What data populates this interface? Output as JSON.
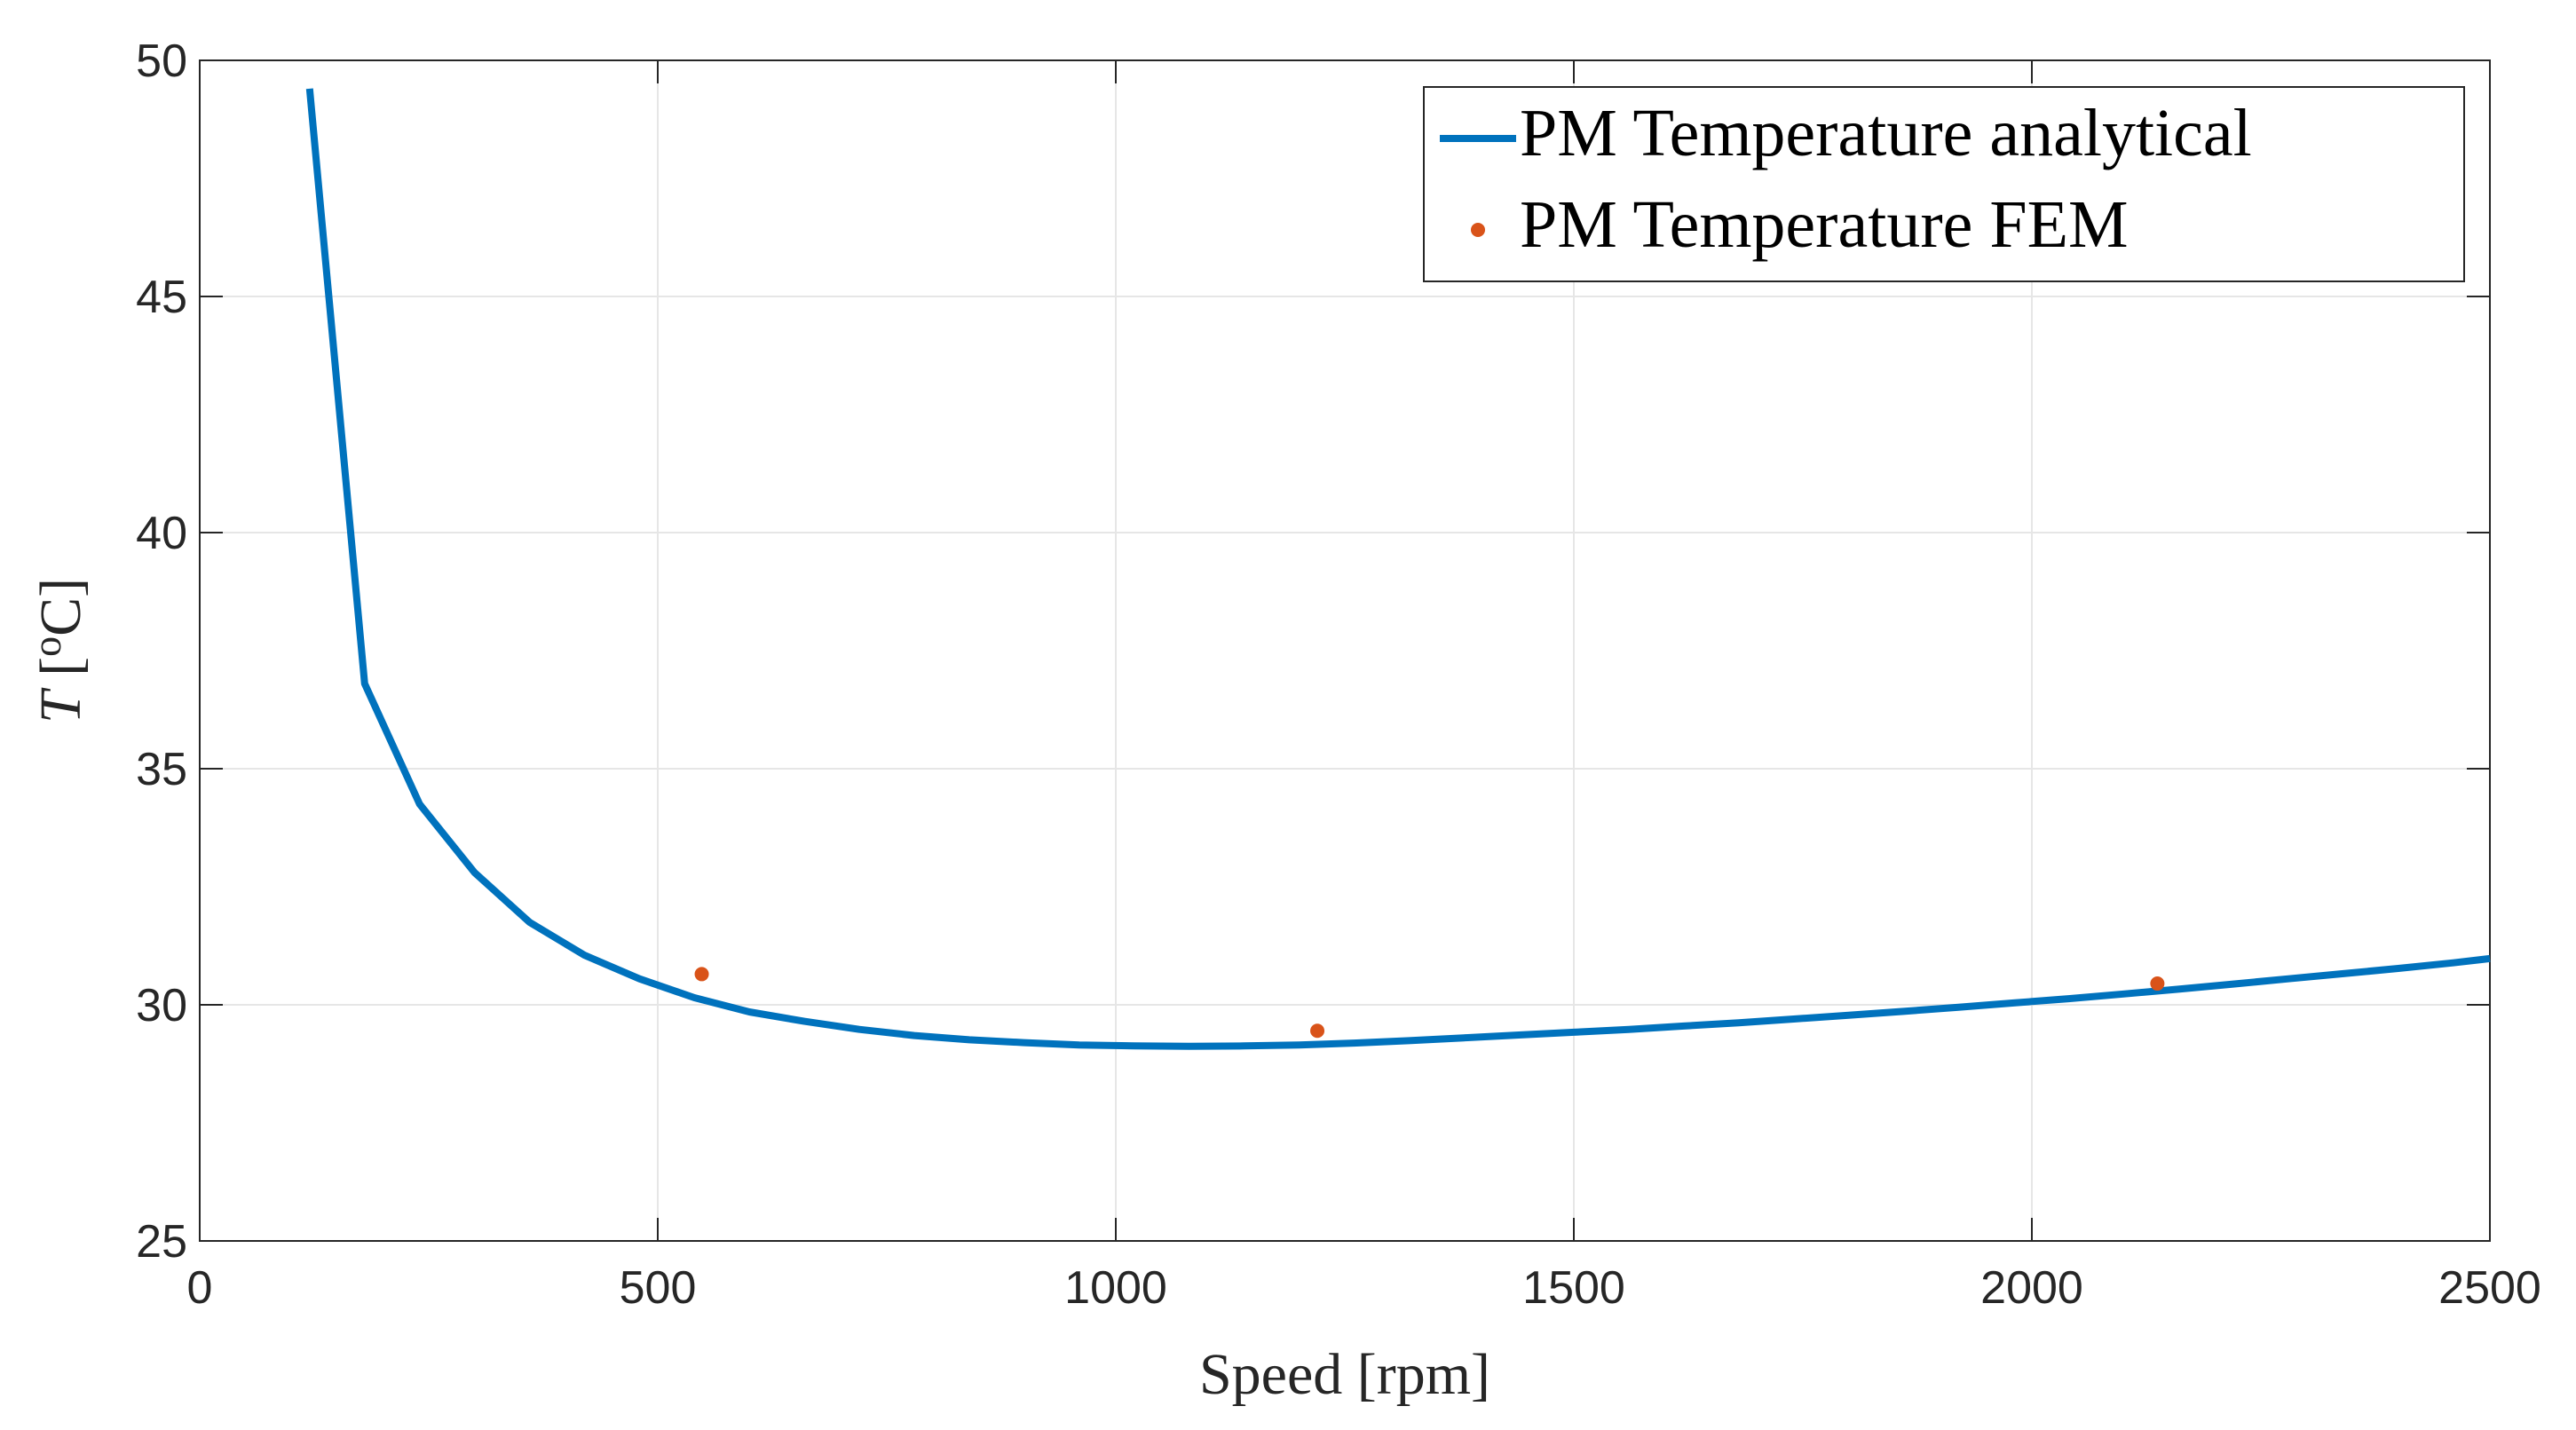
{
  "chart_data": {
    "type": "line",
    "xlabel": "Speed [rpm]",
    "ylabel": {
      "symbol": "T",
      "open": " [",
      "sup": "o",
      "unit": "C]"
    },
    "xlim": [
      0,
      2500
    ],
    "ylim": [
      25,
      50
    ],
    "xticks": [
      0,
      500,
      1000,
      1500,
      2000,
      2500
    ],
    "yticks": [
      25,
      30,
      35,
      40,
      45,
      50
    ],
    "grid": true,
    "legend_position": "top-right",
    "series": [
      {
        "name": "PM Temperature analytical",
        "kind": "line",
        "color": "#0072BD",
        "x": [
          120,
          180,
          240,
          300,
          360,
          420,
          480,
          540,
          600,
          660,
          720,
          780,
          840,
          900,
          960,
          1020,
          1080,
          1140,
          1200,
          1260,
          1320,
          1380,
          1440,
          1500,
          1560,
          1620,
          1680,
          1740,
          1800,
          1860,
          1920,
          1980,
          2040,
          2100,
          2160,
          2220,
          2280,
          2340,
          2400,
          2460,
          2500
        ],
        "y": [
          49.4,
          36.8,
          34.25,
          32.8,
          31.75,
          31.05,
          30.55,
          30.15,
          29.85,
          29.65,
          29.48,
          29.35,
          29.26,
          29.2,
          29.15,
          29.13,
          29.12,
          29.13,
          29.15,
          29.19,
          29.24,
          29.3,
          29.36,
          29.42,
          29.48,
          29.55,
          29.62,
          29.7,
          29.78,
          29.86,
          29.95,
          30.04,
          30.13,
          30.23,
          30.33,
          30.44,
          30.55,
          30.66,
          30.77,
          30.89,
          30.98
        ]
      },
      {
        "name": "PM Temperature FEM",
        "kind": "scatter",
        "color": "#D95319",
        "x": [
          548,
          1220,
          2137
        ],
        "y": [
          30.65,
          29.45,
          30.45
        ]
      }
    ]
  }
}
